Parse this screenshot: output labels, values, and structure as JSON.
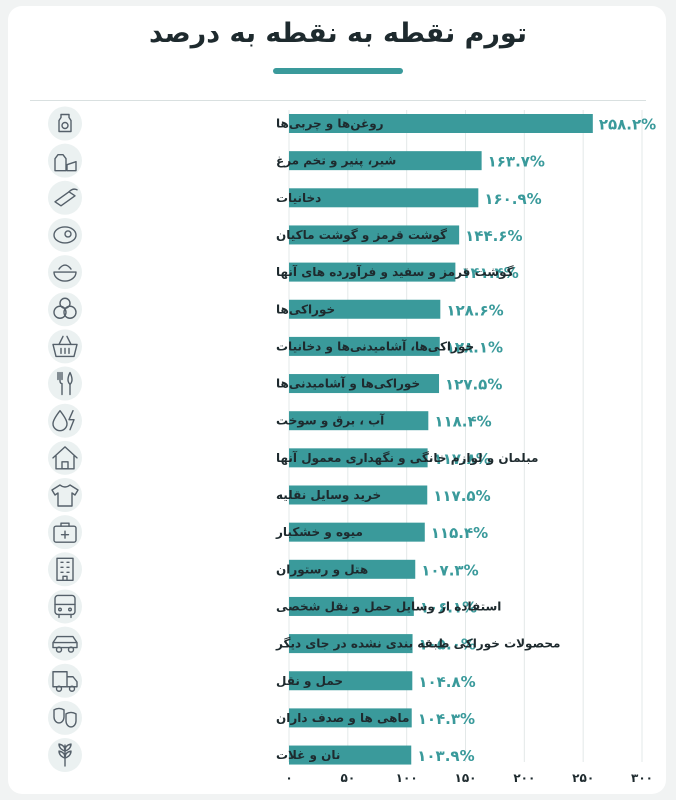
{
  "chart_data": {
    "type": "bar",
    "orientation": "horizontal",
    "title": "تورم نقطه به نقطه به درصد",
    "categories": [
      "روغن‌ها و چربی‌ها",
      "شیر، پنیر و تخم مرغ",
      "دخانیات",
      "گوشت قرمز و گوشت ماکیان",
      "گوشت قرمز و سفید و فرآورده های آنها",
      "خوراکی‌ها",
      "خوراکی‌ها، آشامیدنی‌ها و دخانیات",
      "خوراکی‌ها و آشامیدنی‌ها",
      "آب ، برق و سوخت",
      "مبلمان و لوازم خانگی و نگهداری معمول آنها",
      "خرید وسایل نقلیه",
      "میوه و خشکبار",
      "هتل و رستوران",
      "استفاده از وسایل حمل و نقل شخصی",
      "محصولات خوراکی طبقه بندی نشده در جای دیگر",
      "حمل و نقل",
      "ماهی ها و صدف داران",
      "نان و غلات"
    ],
    "values": [
      258.2,
      163.7,
      160.9,
      144.6,
      141.4,
      128.6,
      128.1,
      127.5,
      118.4,
      117.8,
      117.5,
      115.4,
      107.3,
      106.1,
      105.0,
      104.8,
      104.3,
      103.9
    ],
    "value_labels": [
      "۲۵۸.۲%",
      "۱۶۳.۷%",
      "۱۶۰.۹%",
      "۱۴۴.۶%",
      "۱۴۱.۴%",
      "۱۲۸.۶%",
      "۱۲۸.۱%",
      "۱۲۷.۵%",
      "۱۱۸.۴%",
      "۱۱۷.۸%",
      "۱۱۷.۵%",
      "۱۱۵.۴%",
      "۱۰۷.۳%",
      "۱۰۶.۱%",
      "۱۰۵.۰%",
      "۱۰۴.۸%",
      "۱۰۴.۳%",
      "۱۰۳.۹%"
    ],
    "xlim": [
      0,
      300
    ],
    "x_ticks": [
      0,
      50,
      100,
      150,
      200,
      250,
      300
    ],
    "x_tick_labels": [
      "۰",
      "۵۰",
      "۱۰۰",
      "۱۵۰",
      "۲۰۰",
      "۲۵۰",
      "۳۰۰"
    ],
    "xlabel": "",
    "ylabel": "",
    "grid": true,
    "legend": "none",
    "bar_color": "#3a9a9b",
    "icons": [
      "oil-bottle-icon",
      "milk-cheese-icon",
      "tobacco-icon",
      "meat-steak-icon",
      "food-bowl-icon",
      "vegetables-icon",
      "shopping-basket-icon",
      "cutlery-icon",
      "utilities-drop-bolt-icon",
      "house-icon",
      "tshirt-icon",
      "first-aid-box-icon",
      "hotel-building-icon",
      "bus-icon",
      "car-icon",
      "delivery-truck-icon",
      "fish-mask-icon",
      "wheat-icon"
    ]
  }
}
